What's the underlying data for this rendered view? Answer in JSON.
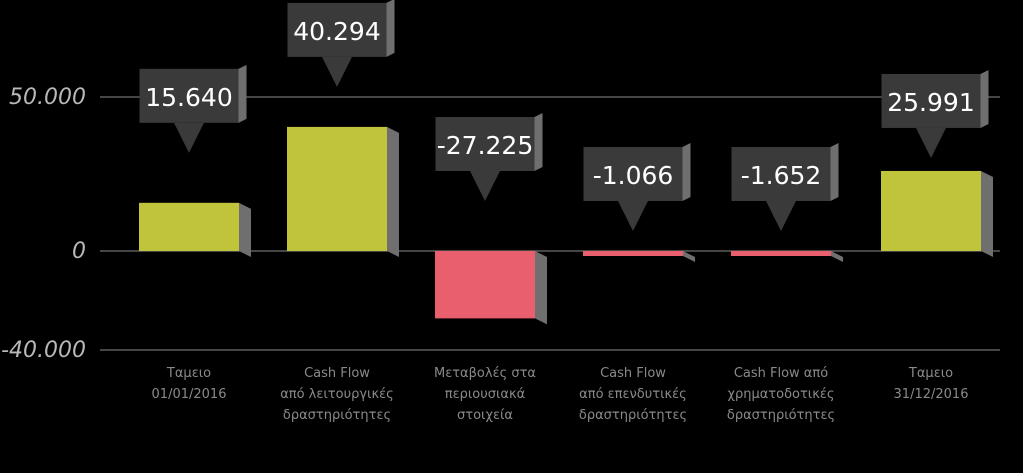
{
  "chart_data": {
    "type": "bar",
    "subtype": "waterfall",
    "categories": [
      [
        "Ταμειο",
        "01/01/2016"
      ],
      [
        "Cash Flow",
        "από λειτουργικές",
        "δραστηριότητες"
      ],
      [
        "Μεταβολές στα",
        "περιουσιακά",
        "στοιχεία"
      ],
      [
        "Cash Flow",
        "από επενδυτικές",
        "δραστηριότητες"
      ],
      [
        "Cash Flow από",
        "χρηματοδοτικές",
        "δραστηριότητες"
      ],
      [
        "Ταμειο",
        "31/12/2016"
      ]
    ],
    "values": [
      15640,
      40294,
      -27225,
      -1066,
      -1652,
      25991
    ],
    "data_labels": [
      "15.640",
      "40.294",
      "-27.225",
      "-1.066",
      "-1.652",
      "25.991"
    ],
    "y_ticks": [
      {
        "value": 50000,
        "label": "50.000"
      },
      {
        "value": 0,
        "label": "0"
      },
      {
        "value": -40000,
        "label": "-40.000"
      }
    ],
    "ylim": [
      -40000,
      50000
    ],
    "colors": {
      "positive": "#bfc43a",
      "negative": "#ea5f6d",
      "callout": "#3a3a3a",
      "shadow": "#6f6f6f",
      "gridline": "#8c8c8c",
      "background": "#000000"
    },
    "grid": true,
    "legend": "none"
  }
}
